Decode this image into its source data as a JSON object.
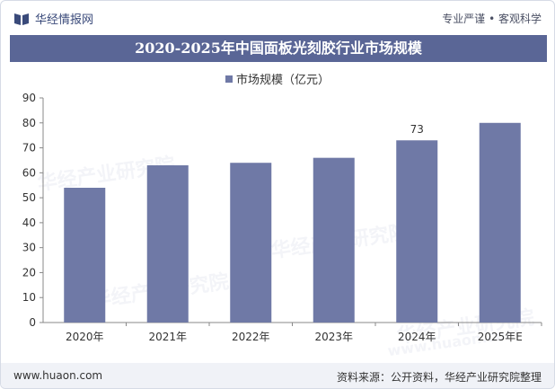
{
  "header": {
    "brand": "华经情报网",
    "slogan": "专业严谨 • 客观科学",
    "logo_icon": "book-logo-icon"
  },
  "title_bar": {
    "title": "2020-2025年中国面板光刻胶行业市场规模"
  },
  "footer": {
    "url": "www.huaon.com",
    "source": "资料来源：公开资料，华经产业研究院整理"
  },
  "watermark": {
    "text": "华经产业研究院",
    "url": "www.huaon.com"
  },
  "colors": {
    "accent": "#5a6696",
    "bar": "#6f79a6",
    "axis": "#888888"
  },
  "chart_data": {
    "type": "bar",
    "title": "2020-2025年中国面板光刻胶行业市场规模",
    "categories": [
      "2020年",
      "2021年",
      "2022年",
      "2023年",
      "2024年",
      "2025年E"
    ],
    "series": [
      {
        "name": "市场规模（亿元）",
        "values": [
          54,
          63,
          64,
          66,
          73,
          80
        ]
      }
    ],
    "data_labels": [
      null,
      null,
      null,
      null,
      "73",
      null
    ],
    "ylim": [
      0,
      90
    ],
    "yticks": [
      0,
      10,
      20,
      30,
      40,
      50,
      60,
      70,
      80,
      90
    ],
    "xlabel": "",
    "ylabel": "",
    "legend": "top-center",
    "grid": false
  }
}
